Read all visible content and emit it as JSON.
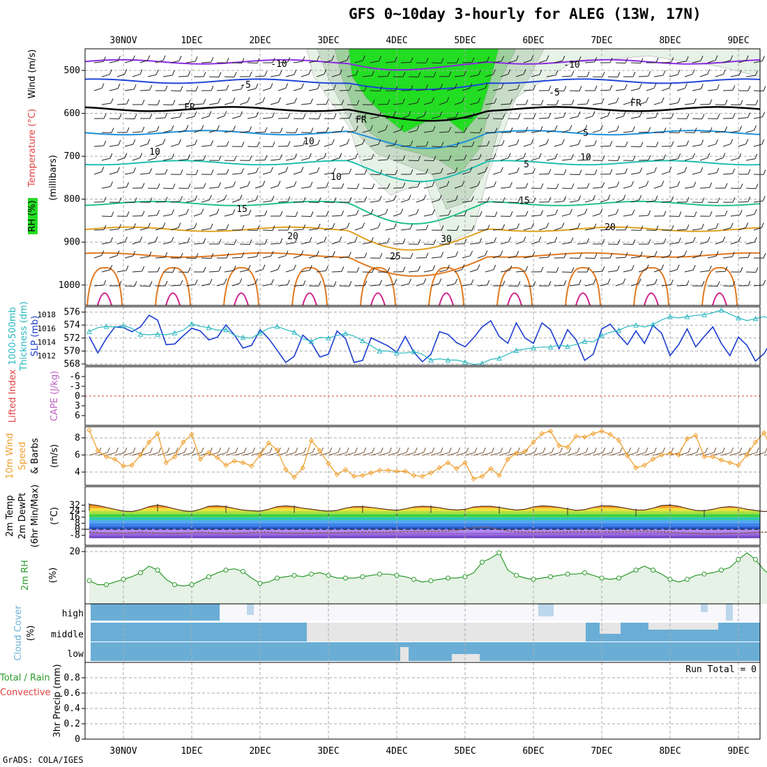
{
  "title": "GFS 0~10day 3-hourly for ALEG (13W, 17N)",
  "credit": "GrADS: COLA/IGES",
  "colors": {
    "purple": "#8a2be2",
    "blue": "#2046d8",
    "lightblue": "#1e90d8",
    "teal": "#1fbfb0",
    "green": "#22c18a",
    "orange": "#e0a020",
    "darkorange": "#e07820",
    "magenta": "#d0208c",
    "slp": "#1c3cd0",
    "thick": "#2ab8c0",
    "wind10": "#f0a030",
    "rh2m": "#2a9a2a",
    "cloud": "#6aaed6"
  },
  "chart_data": {
    "x_axis": {
      "top_labels": [
        "30NOV",
        "1DEC",
        "2DEC",
        "3DEC",
        "4DEC",
        "5DEC",
        "6DEC",
        "7DEC",
        "8DEC",
        "9DEC"
      ],
      "bottom_labels": [
        "30NOV",
        "1DEC",
        "2DEC",
        "3DEC",
        "4DEC",
        "5DEC",
        "6DEC",
        "7DEC",
        "8DEC",
        "9DEC"
      ]
    },
    "panels": [
      {
        "id": "upper-air",
        "type": "contour",
        "side_labels": [
          "RH (%)",
          "Temperature (°C)",
          "Wind (m/s)",
          "(millibars)"
        ],
        "y_ticks": [
          500,
          600,
          700,
          800,
          900,
          1000
        ],
        "contours": [
          {
            "label": "-10",
            "level": 480,
            "color": "purple"
          },
          {
            "label": "-5",
            "level": 525,
            "color": "blue"
          },
          {
            "label": "FR",
            "level": 590,
            "color": "black"
          },
          {
            "label": "5",
            "level": 645,
            "color": "lightblue"
          },
          {
            "label": "10",
            "level": 715,
            "color": "teal"
          },
          {
            "label": "15",
            "level": 810,
            "color": "green"
          },
          {
            "label": "20",
            "level": 870,
            "color": "orange"
          },
          {
            "label": "25",
            "level": 930,
            "color": "darkorange"
          }
        ],
        "contour_labels_shown": [
          "-10",
          "-10",
          "-5",
          "-5",
          "FR",
          "FR",
          "FR",
          "5",
          "5",
          "10",
          "10",
          "10",
          "15",
          "15",
          "20",
          "20",
          "25",
          "10",
          "10",
          "30"
        ]
      },
      {
        "id": "slp-thickness",
        "type": "line",
        "side_labels": [
          "1000-500mb",
          "Thickness (dm)",
          "SLP (mb)"
        ],
        "left_ticks": [
          568,
          570,
          572,
          574,
          576
        ],
        "right_ticks": [
          1012,
          1014,
          1016,
          1018
        ],
        "series": [
          {
            "name": "SLP (mb)",
            "color": "slp",
            "values": [
              1014.8,
              1012.4,
              1014.5,
              1016.2,
              1016.1,
              1015.5,
              1016.2,
              1017.9,
              1017.2,
              1013.6,
              1013.7,
              1014.9,
              1016.0,
              1015.6,
              1014.3,
              1014.7,
              1016.5,
              1015.0,
              1013.1,
              1013.5,
              1015.8,
              1014.5,
              1012.8,
              1011.0,
              1011.9,
              1015.0,
              1013.9,
              1011.8,
              1012.2,
              1015.6,
              1014.5,
              1011.0,
              1011.3,
              1014.6,
              1014.0,
              1013.4,
              1012.5,
              1014.8,
              1012.5,
              1011.1,
              1012.2,
              1015.5,
              1015.1,
              1013.9,
              1013.3,
              1014.6,
              1016.2,
              1017.1,
              1014.8,
              1013.8,
              1016.8,
              1014.6,
              1013.8,
              1016.8,
              1015.8,
              1013.0,
              1015.8,
              1014.3,
              1011.3,
              1012.2,
              1015.9,
              1016.6,
              1015.0,
              1013.6,
              1015.6,
              1013.8,
              1016.4,
              1015.3,
              1012.0,
              1013.6,
              1015.9,
              1013.3,
              1014.8,
              1016.2,
              1013.8,
              1012.0,
              1014.7,
              1013.5,
              1011.2,
              1012.3,
              1014.4,
              1012.8,
              1011.5,
              1012.5,
              1011.6,
              1010.9,
              1013.6,
              1012.8,
              1012.1
            ]
          },
          {
            "name": "Thickness (dm)",
            "color": "thick",
            "values": [
              573.0,
              573.6,
              573.8,
              573.7,
              573.9,
              573.5,
              572.6,
              572.5,
              572.6,
              572.5,
              572.8,
              573.2,
              574.2,
              573.8,
              573.6,
              573.2,
              573.3,
              572.4,
              572.1,
              572.0,
              572.8,
              573.5,
              573.8,
              573.3,
              572.9,
              571.9,
              571.5,
              572.1,
              572.0,
              572.4,
              572.7,
              572.3,
              571.6,
              570.8,
              570.0,
              570.0,
              569.7,
              569.7,
              569.9,
              569.5,
              568.6,
              568.8,
              568.6,
              568.6,
              568.3,
              567.9,
              568.1,
              568.7,
              568.9,
              569.5,
              570.1,
              570.3,
              570.5,
              570.6,
              570.6,
              570.9,
              570.7,
              571.0,
              571.5,
              571.4,
              572.4,
              572.9,
              573.2,
              573.8,
              574.0,
              573.7,
              574.1,
              574.8,
              575.3,
              575.1,
              575.3,
              575.5,
              575.6,
              575.9,
              576.3,
              575.7,
              575.1,
              574.7,
              575.0,
              575.3,
              574.8,
              574.9,
              575.3,
              575.0,
              575.0,
              575.1,
              574.6,
              574.3,
              574.1
            ]
          }
        ]
      },
      {
        "id": "lifted-cape",
        "type": "line",
        "side_labels": [
          "Lifted Index",
          "CAPE (J/kg)"
        ],
        "left_ticks": [
          "-6",
          "-3",
          "0",
          "3",
          "6"
        ],
        "series": [
          {
            "name": "Lifted Index",
            "values": []
          }
        ]
      },
      {
        "id": "wind10m",
        "type": "line",
        "side_labels": [
          "10m Wind",
          "Speed",
          "& Barbs",
          "(m/s)"
        ],
        "left_ticks": [
          4,
          6,
          8
        ],
        "series": [
          {
            "name": "10m Wind Speed (m/s)",
            "color": "wind10",
            "values": [
              8.9,
              6.5,
              5.8,
              5.5,
              4.7,
              4.8,
              6.0,
              7.5,
              8.5,
              5.1,
              5.8,
              7.5,
              8.4,
              5.5,
              6.3,
              5.7,
              4.8,
              5.3,
              5.1,
              4.7,
              6.0,
              7.4,
              6.6,
              4.3,
              3.4,
              4.5,
              7.7,
              6.5,
              5.0,
              3.7,
              4.3,
              3.5,
              3.6,
              3.9,
              4.2,
              4.2,
              4.1,
              4.1,
              3.6,
              3.5,
              3.9,
              4.5,
              5.1,
              4.4,
              5.1,
              3.2,
              3.5,
              4.4,
              3.6,
              5.5,
              6.2,
              6.4,
              7.5,
              8.5,
              8.8,
              7.1,
              6.9,
              8.2,
              8.1,
              8.5,
              8.8,
              8.4,
              7.7,
              5.9,
              4.5,
              4.8,
              5.5,
              6.0,
              6.2,
              6.0,
              7.9,
              8.3,
              5.8,
              5.8,
              5.4,
              5.1,
              4.8,
              6.0,
              7.5,
              8.6,
              6.4,
              5.5,
              5.0,
              4.8,
              4.2,
              5.7,
              7.2,
              6.4,
              5.5,
              4.7,
              4.6
            ]
          }
        ]
      },
      {
        "id": "temp2m",
        "type": "area",
        "side_labels": [
          "2m Temp",
          "2m DewPt",
          "(6hr Min/Max)",
          "(°C)"
        ],
        "left_ticks": [
          -8,
          0,
          8,
          16,
          24,
          32
        ],
        "series": [
          {
            "name": "2m Temp",
            "values": [
              33,
              31.5,
              29,
              26.5,
              24,
              23.5,
              26,
              30,
              32,
              30,
              27,
              24.5,
              23.5,
              26.5,
              30.5,
              31,
              30,
              27.5,
              25.5,
              24.5,
              24,
              26.5,
              30,
              31,
              30,
              28,
              26.5,
              25,
              24,
              25,
              28,
              30,
              30,
              29,
              27.5,
              26,
              25,
              27,
              29.5,
              30.5,
              30,
              28.5,
              26.5,
              25.5,
              26.5,
              29.5,
              30.5,
              30.5,
              29,
              27,
              25.5,
              26.5,
              29.5,
              31,
              30.5,
              29,
              27,
              25,
              26,
              29,
              31,
              31,
              29.5,
              27.5,
              25.5,
              25.5,
              28,
              31.5,
              32,
              30.5,
              27.5,
              25,
              24.5,
              26.5,
              29,
              30,
              29,
              26.5,
              25,
              23.5,
              24.5,
              27.5,
              29,
              28.5,
              26.5,
              24,
              22,
              21
            ]
          },
          {
            "name": "2m DewPt",
            "values": [
              -4,
              -4.5,
              -5,
              -5,
              -5,
              -4.5,
              -4,
              -4.5,
              -5,
              -5,
              -5.5,
              -5,
              -4.5,
              -4,
              -4.5,
              -5,
              -5,
              -5.5,
              -5,
              -4.5,
              -4,
              -4,
              -4.5,
              -5,
              -5,
              -5,
              -5,
              -4.5,
              -4.5,
              -4.5,
              -4.5,
              -4,
              -4,
              -4,
              -4,
              -4,
              -3.5,
              -3,
              -3,
              -3,
              -3,
              -3,
              -2.5,
              -1.5,
              0.5,
              2,
              2.5,
              2,
              0,
              -2,
              -3.5,
              -4,
              -4,
              -4,
              -4,
              -4,
              -3.5,
              -3.5,
              -3.5,
              -3.5,
              -3.5,
              -3.5,
              -3.5,
              -3,
              -2.5,
              -2.5,
              -3,
              -3.5,
              -4,
              -4.5,
              -5,
              -5.5,
              -6,
              -6.5,
              -6,
              -5.5,
              -5,
              -4.5,
              -4,
              -4,
              -4,
              -3.5,
              -3.5,
              -3.5,
              -3.5,
              -3.5,
              -4,
              -4
            ]
          }
        ]
      },
      {
        "id": "rh2m",
        "type": "line",
        "side_labels": [
          "2m RH",
          "(%)"
        ],
        "left_ticks": [
          20
        ],
        "series": [
          {
            "name": "2m RH (%)",
            "color": "rh2m",
            "values": [
              9,
              7.5,
              7.5,
              8.5,
              9.5,
              10.5,
              12,
              14.5,
              13,
              9.5,
              7.5,
              7,
              7.5,
              9,
              10.5,
              12,
              13,
              13.5,
              12.5,
              10,
              8,
              8.5,
              10,
              10.5,
              11,
              10.5,
              11.5,
              12,
              11,
              10,
              10,
              10,
              10.5,
              11,
              11.5,
              11.5,
              11,
              10.5,
              9.5,
              8.5,
              9,
              9.5,
              10,
              10,
              10.5,
              12,
              16,
              17.5,
              19.5,
              13,
              11,
              10,
              9.5,
              10,
              10.5,
              11,
              11.5,
              11.5,
              12,
              11,
              10,
              9.5,
              10,
              11.5,
              13,
              14.5,
              13,
              11.5,
              9.5,
              8.5,
              9.5,
              11,
              11.5,
              12,
              13,
              14,
              17,
              19.5,
              17,
              13,
              10.5,
              10,
              11,
              12,
              12.5,
              13,
              15,
              16
            ]
          }
        ]
      },
      {
        "id": "cloud",
        "type": "bar",
        "side_labels": [
          "Cloud Cover",
          "(%)"
        ],
        "rows": [
          "high",
          "middle",
          "low"
        ]
      },
      {
        "id": "precip",
        "type": "bar",
        "side_labels": [
          "Total / Rain",
          "Convective",
          "3hr Precip (mm)"
        ],
        "left_ticks": [
          "0",
          "0.2",
          "0.4",
          "0.6",
          "0.8"
        ],
        "run_total": "Run Total = 0",
        "values": []
      }
    ]
  }
}
